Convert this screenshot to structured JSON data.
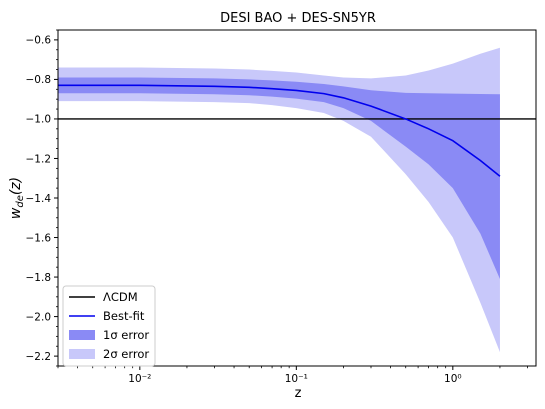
{
  "chart_data": {
    "type": "line",
    "title": "DESI BAO + DES-SN5YR",
    "xlabel": "z",
    "ylabel": "w_de(z)",
    "x_scale": "log",
    "xlim": [
      0.003,
      3.4
    ],
    "ylim": [
      -2.25,
      -0.55
    ],
    "x_ticks": [
      {
        "value": 0.01,
        "label": "10⁻²"
      },
      {
        "value": 0.1,
        "label": "10⁻¹"
      },
      {
        "value": 1,
        "label": "10⁰"
      }
    ],
    "y_ticks": [
      -0.6,
      -0.8,
      -1.0,
      -1.2,
      -1.4,
      -1.6,
      -1.8,
      -2.0,
      -2.2
    ],
    "y_tick_labels": [
      "−0.6",
      "−0.8",
      "−1.0",
      "−1.2",
      "−1.4",
      "−1.6",
      "−1.8",
      "−2.0",
      "−2.2"
    ],
    "grid": false,
    "legend_position": "lower-left",
    "z": [
      0.003,
      0.01,
      0.03,
      0.05,
      0.07,
      0.1,
      0.15,
      0.2,
      0.3,
      0.5,
      0.7,
      1.0,
      1.5,
      2.0
    ],
    "series": [
      {
        "name": "ΛCDM",
        "kind": "line",
        "color": "#000000",
        "y": [
          -1.0,
          -1.0,
          -1.0,
          -1.0,
          -1.0,
          -1.0,
          -1.0,
          -1.0,
          -1.0,
          -1.0,
          -1.0,
          -1.0,
          -1.0,
          -1.0
        ]
      },
      {
        "name": "Best-fit",
        "kind": "line",
        "color": "#0000ee",
        "y": [
          -0.83,
          -0.83,
          -0.835,
          -0.84,
          -0.847,
          -0.856,
          -0.872,
          -0.893,
          -0.935,
          -1.0,
          -1.05,
          -1.11,
          -1.21,
          -1.29
        ]
      },
      {
        "name": "1σ error",
        "kind": "band",
        "color": "#8a8af5",
        "lower": [
          -0.87,
          -0.87,
          -0.875,
          -0.88,
          -0.887,
          -0.897,
          -0.915,
          -0.945,
          -1.01,
          -1.14,
          -1.23,
          -1.35,
          -1.58,
          -1.81
        ],
        "upper": [
          -0.79,
          -0.79,
          -0.795,
          -0.8,
          -0.805,
          -0.812,
          -0.823,
          -0.835,
          -0.855,
          -0.868,
          -0.87,
          -0.872,
          -0.874,
          -0.875
        ]
      },
      {
        "name": "2σ error",
        "kind": "band",
        "color": "#c8c8fa",
        "lower": [
          -0.91,
          -0.91,
          -0.915,
          -0.92,
          -0.93,
          -0.945,
          -0.97,
          -1.01,
          -1.09,
          -1.28,
          -1.42,
          -1.6,
          -1.93,
          -2.18
        ],
        "upper": [
          -0.74,
          -0.74,
          -0.745,
          -0.75,
          -0.757,
          -0.765,
          -0.78,
          -0.79,
          -0.795,
          -0.78,
          -0.755,
          -0.72,
          -0.67,
          -0.64
        ]
      }
    ],
    "legend": [
      {
        "label": "ΛCDM",
        "type": "line",
        "color": "#000000"
      },
      {
        "label": "Best-fit",
        "type": "line",
        "color": "#0000ee"
      },
      {
        "label": "1σ error",
        "type": "patch",
        "color": "#8a8af5"
      },
      {
        "label": "2σ error",
        "type": "patch",
        "color": "#c8c8fa"
      }
    ]
  }
}
